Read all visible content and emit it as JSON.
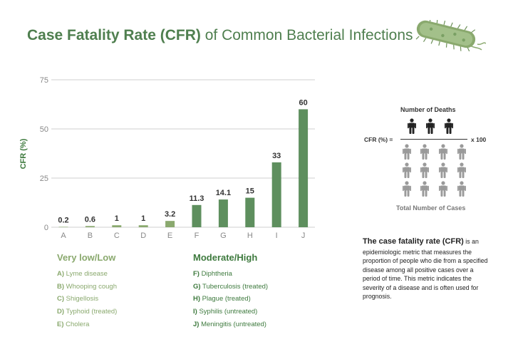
{
  "title": {
    "bold": "Case Fatality Rate (CFR)",
    "rest": " of Common Bacterial Infections"
  },
  "chart_data": {
    "type": "bar",
    "categories": [
      "A",
      "B",
      "C",
      "D",
      "E",
      "F",
      "G",
      "H",
      "I",
      "J"
    ],
    "values": [
      0.2,
      0.6,
      1,
      1,
      3.2,
      11.3,
      14.1,
      15,
      33,
      60
    ],
    "value_labels": [
      "0.2",
      "0.6",
      "1",
      "1",
      "3.2",
      "11.3",
      "14.1",
      "15",
      "33",
      "60"
    ],
    "ylabel": "CFR (%)",
    "ylim": [
      0,
      75
    ],
    "yticks": [
      0,
      25,
      50,
      75
    ],
    "grid": true,
    "colors": [
      "#8aa96e",
      "#8aa96e",
      "#8aa96e",
      "#8aa96e",
      "#8aa96e",
      "#5e8f5e",
      "#5e8f5e",
      "#5e8f5e",
      "#5e8f5e",
      "#5e8f5e"
    ]
  },
  "legend": {
    "low": {
      "heading": "Very low/Low",
      "items": [
        {
          "code": "A)",
          "name": " Lyme disease"
        },
        {
          "code": "B)",
          "name": " Whooping cough"
        },
        {
          "code": "C)",
          "name": " Shigellosis"
        },
        {
          "code": "D)",
          "name": " Typhoid (treated)"
        },
        {
          "code": "E)",
          "name": " Cholera"
        }
      ]
    },
    "high": {
      "heading": "Moderate/High",
      "items": [
        {
          "code": "F)",
          "name": " Diphtheria"
        },
        {
          "code": "G)",
          "name": " Tuberculosis (treated)"
        },
        {
          "code": "H)",
          "name": " Plague (treated)"
        },
        {
          "code": "I)",
          "name": " Syphilis (untreated)"
        },
        {
          "code": "J)",
          "name": " Meningitis (untreated)"
        }
      ]
    }
  },
  "formula": {
    "numerator": "Number of Deaths",
    "lhs": "CFR (%) =",
    "multiplier": "x 100",
    "denominator": "Total Number of Cases",
    "deaths_count": 3,
    "cases_count": 12,
    "colors": {
      "deaths": "#222222",
      "cases": "#9a9a9a"
    }
  },
  "description": {
    "bold": "The case fatality rate (CFR)",
    "rest": " is an epidemiologic metric that measures the proportion of people who die from a specified disease among all positive cases over a period of time. This metric indicates the severity of a disease and is often used for prognosis."
  },
  "icons": {
    "header": "bacterium-icon",
    "person": "person-icon"
  }
}
